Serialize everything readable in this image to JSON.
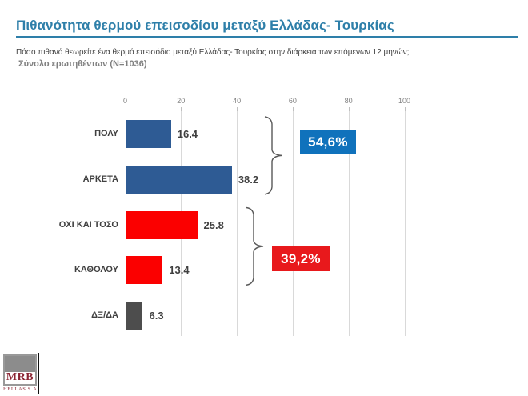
{
  "header": {
    "title": "Πιθανότητα θερμού επεισοδίου μεταξύ Ελλάδας- Τουρκίας",
    "question": "Πόσο πιθανό θεωρείτε ένα θερμό επεισόδιο μεταξύ Ελλάδας- Τουρκίας στην διάρκεια των επόμενων 12 μηνών;",
    "sample": "Σύνολο ερωτηθέντων (N=1036)"
  },
  "chart_data": {
    "type": "bar",
    "orientation": "horizontal",
    "categories": [
      "ΠΟΛΥ",
      "ΑΡΚΕΤΑ",
      "ΟΧΙ ΚΑΙ ΤΟΣΟ",
      "ΚΑΘΟΛΟΥ",
      "ΔΞ/ΔΑ"
    ],
    "values": [
      16.4,
      38.2,
      25.8,
      13.4,
      6.3
    ],
    "bar_colors": [
      "#2E5B94",
      "#2E5B94",
      "#FB0000",
      "#FB0000",
      "#4D4D4D"
    ],
    "value_labels": [
      "16.4",
      "38.2",
      "25.8",
      "13.4",
      "6.3"
    ],
    "xlim": [
      0,
      100
    ],
    "x_ticks": [
      "0",
      "20",
      "40",
      "60",
      "80",
      "100"
    ],
    "grid": true,
    "groups": [
      {
        "label": "54,6%",
        "color": "#1072BC",
        "member_indices": [
          0,
          1
        ]
      },
      {
        "label": "39,2%",
        "color": "#E8191C",
        "member_indices": [
          2,
          3
        ]
      }
    ]
  },
  "colors": {
    "title": "#2E7FA9",
    "blue_bar": "#2E5B94",
    "red_bar": "#FB0000",
    "gray_bar": "#4D4D4D",
    "blue_badge": "#1072BC",
    "red_badge": "#E8191C"
  },
  "logo": {
    "name": "MRB",
    "sub": "HELLAS S.A."
  }
}
